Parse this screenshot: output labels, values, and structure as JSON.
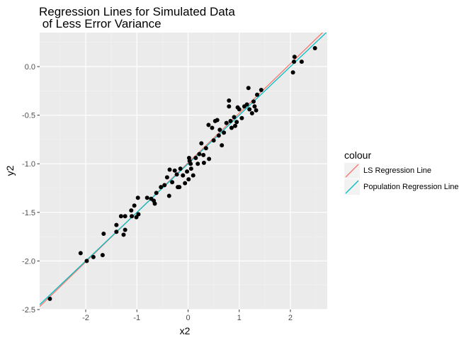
{
  "chart_data": {
    "type": "scatter",
    "title_lines": [
      "Regression Lines for Simulated Data",
      " of Less Error Variance"
    ],
    "xlabel": "x2",
    "ylabel": "y2",
    "xlim": [
      -2.9,
      2.72
    ],
    "ylim": [
      -2.5,
      0.35
    ],
    "x_ticks": [
      -2,
      -1,
      0,
      1,
      2
    ],
    "x_tick_labels": [
      "-2",
      "-1",
      "0",
      "1",
      "2"
    ],
    "y_ticks": [
      -2.5,
      -2.0,
      -1.5,
      -1.0,
      -0.5,
      0.0
    ],
    "y_tick_labels": [
      "-2.5",
      "-2.0",
      "-1.5",
      "-1.0",
      "-0.5",
      "0.0"
    ],
    "grid": true,
    "legend": {
      "title": "colour",
      "placement": "right",
      "entries": [
        {
          "label": "LS Regression Line",
          "color": "#F8766D"
        },
        {
          "label": "Population Regression Line",
          "color": "#00BFC4"
        }
      ]
    },
    "lines": [
      {
        "name": "LS Regression Line",
        "color": "#F8766D",
        "intercept": -0.99,
        "slope": 0.51
      },
      {
        "name": "Population Regression Line",
        "color": "#00BFC4",
        "intercept": -1.0,
        "slope": 0.5
      }
    ],
    "points": [
      [
        -2.7,
        -2.39
      ],
      [
        -2.1,
        -1.92
      ],
      [
        -1.98,
        -2.0
      ],
      [
        -1.85,
        -1.96
      ],
      [
        -1.67,
        -1.94
      ],
      [
        -1.65,
        -1.72
      ],
      [
        -1.4,
        -1.63
      ],
      [
        -1.4,
        -1.7
      ],
      [
        -1.31,
        -1.54
      ],
      [
        -1.26,
        -1.73
      ],
      [
        -1.23,
        -1.68
      ],
      [
        -1.23,
        -1.54
      ],
      [
        -1.11,
        -1.48
      ],
      [
        -1.1,
        -1.54
      ],
      [
        -1.05,
        -1.43
      ],
      [
        -1.01,
        -1.55
      ],
      [
        -0.98,
        -1.35
      ],
      [
        -0.97,
        -1.52
      ],
      [
        -0.8,
        -1.35
      ],
      [
        -0.72,
        -1.36
      ],
      [
        -0.67,
        -1.38
      ],
      [
        -0.65,
        -1.41
      ],
      [
        -0.62,
        -1.3
      ],
      [
        -0.53,
        -1.24
      ],
      [
        -0.46,
        -1.22
      ],
      [
        -0.41,
        -1.14
      ],
      [
        -0.37,
        -1.33
      ],
      [
        -0.36,
        -1.06
      ],
      [
        -0.31,
        -1.19
      ],
      [
        -0.26,
        -1.07
      ],
      [
        -0.22,
        -1.11
      ],
      [
        -0.2,
        -1.24
      ],
      [
        -0.17,
        -1.24
      ],
      [
        -0.15,
        -1.05
      ],
      [
        -0.1,
        -1.12
      ],
      [
        -0.06,
        -1.2
      ],
      [
        -0.02,
        -1.08
      ],
      [
        0.01,
        -1.16
      ],
      [
        0.02,
        -0.94
      ],
      [
        0.03,
        -0.97
      ],
      [
        0.05,
        -1.0
      ],
      [
        0.06,
        -1.05
      ],
      [
        0.1,
        -1.12
      ],
      [
        0.15,
        -0.94
      ],
      [
        0.19,
        -1.0
      ],
      [
        0.22,
        -0.9
      ],
      [
        0.26,
        -0.79
      ],
      [
        0.3,
        -0.91
      ],
      [
        0.31,
        -0.99
      ],
      [
        0.35,
        -0.84
      ],
      [
        0.4,
        -0.6
      ],
      [
        0.41,
        -0.95
      ],
      [
        0.47,
        -0.63
      ],
      [
        0.5,
        -0.76
      ],
      [
        0.53,
        -0.56
      ],
      [
        0.57,
        -0.55
      ],
      [
        0.6,
        -0.71
      ],
      [
        0.62,
        -0.65
      ],
      [
        0.66,
        -0.81
      ],
      [
        0.7,
        -0.68
      ],
      [
        0.75,
        -0.58
      ],
      [
        0.8,
        -0.41
      ],
      [
        0.8,
        -0.35
      ],
      [
        0.83,
        -0.56
      ],
      [
        0.85,
        -0.63
      ],
      [
        0.9,
        -0.52
      ],
      [
        0.92,
        -0.61
      ],
      [
        0.95,
        -0.57
      ],
      [
        0.97,
        -0.42
      ],
      [
        1.0,
        -0.44
      ],
      [
        1.05,
        -0.53
      ],
      [
        1.1,
        -0.41
      ],
      [
        1.15,
        -0.39
      ],
      [
        1.18,
        -0.22
      ],
      [
        1.2,
        -0.44
      ],
      [
        1.25,
        -0.48
      ],
      [
        1.28,
        -0.36
      ],
      [
        1.3,
        -0.41
      ],
      [
        1.33,
        -0.45
      ],
      [
        1.35,
        -0.29
      ],
      [
        1.43,
        -0.24
      ],
      [
        2.05,
        -0.06
      ],
      [
        2.07,
        0.05
      ],
      [
        2.08,
        0.1
      ],
      [
        2.22,
        0.05
      ],
      [
        2.48,
        0.19
      ]
    ]
  }
}
